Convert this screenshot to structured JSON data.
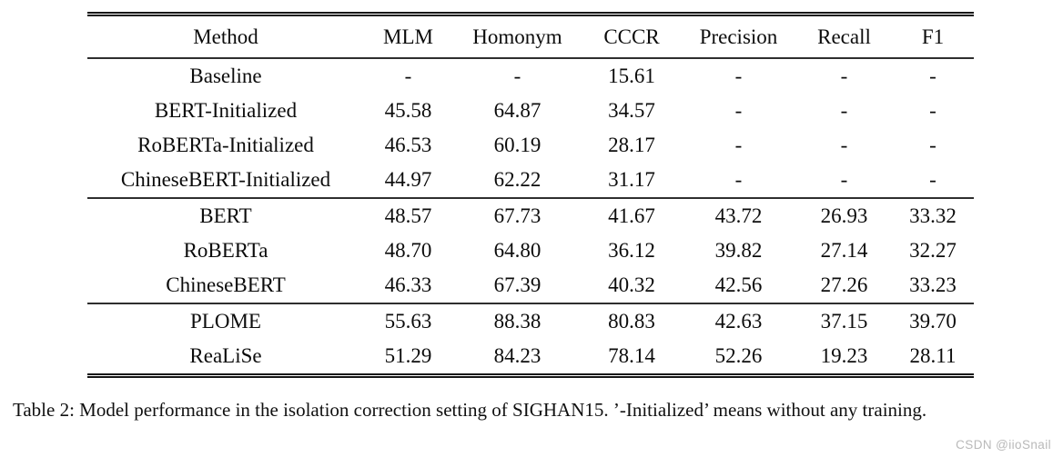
{
  "colors": {
    "background": "#ffffff",
    "text": "#0c0c0c",
    "rule": "#2e2e2e",
    "watermark": "#b9b9b9"
  },
  "chart_data": {
    "type": "table",
    "title": "Table 2",
    "columns": [
      "Method",
      "MLM",
      "Homonym",
      "CCCR",
      "Precision",
      "Recall",
      "F1"
    ],
    "groups": [
      {
        "rows": [
          {
            "method": "Baseline",
            "values": [
              "-",
              "-",
              "15.61",
              "-",
              "-",
              "-"
            ]
          },
          {
            "method": "BERT-Initialized",
            "values": [
              "45.58",
              "64.87",
              "34.57",
              "-",
              "-",
              "-"
            ]
          },
          {
            "method": "RoBERTa-Initialized",
            "values": [
              "46.53",
              "60.19",
              "28.17",
              "-",
              "-",
              "-"
            ]
          },
          {
            "method": "ChineseBERT-Initialized",
            "values": [
              "44.97",
              "62.22",
              "31.17",
              "-",
              "-",
              "-"
            ]
          }
        ]
      },
      {
        "rows": [
          {
            "method": "BERT",
            "values": [
              "48.57",
              "67.73",
              "41.67",
              "43.72",
              "26.93",
              "33.32"
            ]
          },
          {
            "method": "RoBERTa",
            "values": [
              "48.70",
              "64.80",
              "36.12",
              "39.82",
              "27.14",
              "32.27"
            ]
          },
          {
            "method": "ChineseBERT",
            "values": [
              "46.33",
              "67.39",
              "40.32",
              "42.56",
              "27.26",
              "33.23"
            ]
          }
        ]
      },
      {
        "rows": [
          {
            "method": "PLOME",
            "values": [
              "55.63",
              "88.38",
              "80.83",
              "42.63",
              "37.15",
              "39.70"
            ]
          },
          {
            "method": "ReaLiSe",
            "values": [
              "51.29",
              "84.23",
              "78.14",
              "52.26",
              "19.23",
              "28.11"
            ]
          }
        ]
      }
    ]
  },
  "caption": "Table 2:  Model performance in the isolation correction setting of SIGHAN15. ’-Initialized’ means without any training.",
  "watermark": {
    "text": "CSDN @iioSnail"
  }
}
